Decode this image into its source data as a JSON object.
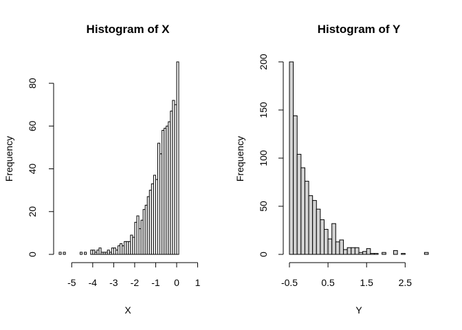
{
  "chart_data": [
    {
      "type": "bar",
      "title": "Histogram of X",
      "xlabel": "X",
      "ylabel": "Frequency",
      "xlim": [
        -5.6,
        1.0
      ],
      "ylim": [
        0,
        90
      ],
      "xticks": [
        -5,
        -4,
        -3,
        -2,
        -1,
        0,
        1
      ],
      "yticks": [
        0,
        20,
        40,
        60,
        80
      ],
      "bin_start": -5.6,
      "bin_width": 0.1,
      "values": [
        1,
        0,
        1,
        0,
        0,
        0,
        0,
        0,
        0,
        0,
        1,
        0,
        1,
        0,
        0,
        2,
        2,
        1,
        2,
        3,
        1,
        1,
        1,
        2,
        1,
        3,
        3,
        2,
        4,
        5,
        4,
        6,
        6,
        6,
        9,
        8,
        15,
        18,
        12,
        16,
        21,
        23,
        27,
        30,
        33,
        37,
        35,
        52,
        47,
        58,
        59,
        60,
        62,
        67,
        72,
        70,
        90
      ],
      "bar_fill": "#ffffff"
    },
    {
      "type": "bar",
      "title": "Histogram of Y",
      "xlabel": "Y",
      "ylabel": "Frequency",
      "xlim": [
        -0.5,
        3.1
      ],
      "ylim": [
        0,
        200
      ],
      "xticks": [
        "-0.5",
        "0.5",
        "1.5",
        "2.5"
      ],
      "xtick_values": [
        -0.5,
        0.5,
        1.5,
        2.5
      ],
      "yticks": [
        0,
        50,
        100,
        150,
        200
      ],
      "bin_start": -0.5,
      "bin_width": 0.1,
      "values": [
        200,
        144,
        104,
        90,
        76,
        61,
        56,
        47,
        36,
        26,
        16,
        32,
        13,
        15,
        5,
        7,
        7,
        7,
        2,
        3,
        6,
        1,
        1,
        0,
        2,
        0,
        0,
        4,
        0,
        1,
        0,
        0,
        0,
        0,
        0,
        2
      ],
      "bar_fill": "#d3d3d3"
    }
  ]
}
